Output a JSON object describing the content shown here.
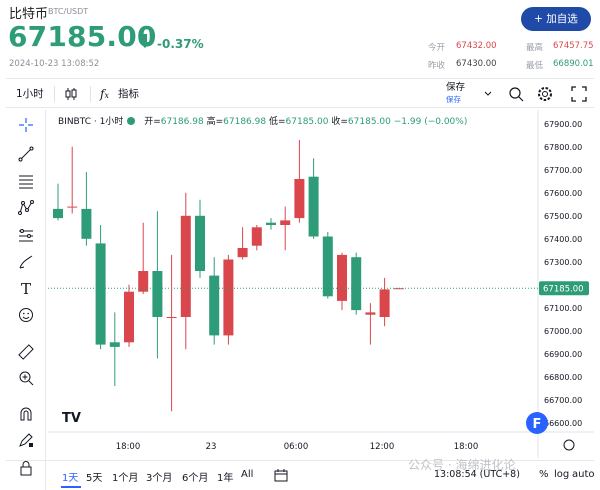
{
  "header": {
    "pair_name": "比特币",
    "pair_code": "BTC/USDT",
    "price": "67185.00",
    "change_pct": "-0.37%",
    "timestamp": "2024-10-23 13:08:52",
    "watch_button": "+ 加自选",
    "stats": {
      "open_label": "今开",
      "open_value": "67432.00",
      "high_label": "最高",
      "high_value": "67457.75",
      "prev_label": "昨收",
      "prev_value": "67430.00",
      "low_label": "最低",
      "low_value": "66890.01"
    },
    "colors": {
      "up": "#d9474c",
      "down": "#2e9c78",
      "accent": "#2962ff"
    }
  },
  "toolbar": {
    "interval": "1小时",
    "indicators": "指标",
    "save_label": "保存",
    "save_sub": "保存",
    "icons": [
      "candles-icon",
      "fx-icon",
      "undo-icon",
      "redo-icon",
      "search-icon",
      "settings-icon",
      "fullscreen-icon"
    ]
  },
  "tools": [
    "crosshair-icon",
    "trendline-icon",
    "fib-icon",
    "pattern-icon",
    "path-icon",
    "brush-icon",
    "text-icon",
    "emoji-icon",
    "ruler-icon",
    "zoom-in-icon",
    "magnet-icon",
    "lock-edit-icon",
    "lock-icon"
  ],
  "legend": {
    "symbol": "BINBTC · 1小时",
    "open_label": "开",
    "open": "67186.98",
    "high_label": "高",
    "high": "67186.98",
    "low_label": "低",
    "low": "67185.00",
    "close_label": "收",
    "close": "67185.00",
    "change": "−1.99 (−0.00%)"
  },
  "chart_data": {
    "type": "candlestick",
    "x_ticks": [
      "18:00",
      "23",
      "06:00",
      "12:00",
      "18:00"
    ],
    "y_ticks": [
      67900,
      67800,
      67700,
      67600,
      67500,
      67400,
      67300,
      67200,
      67100,
      67000,
      66900,
      66800,
      66700,
      66600
    ],
    "ylim": [
      66560,
      67960
    ],
    "last_price": "67185.00",
    "candles": [
      {
        "o": 67530,
        "h": 67640,
        "l": 67480,
        "c": 67490
      },
      {
        "o": 67540,
        "h": 67800,
        "l": 67510,
        "c": 67540
      },
      {
        "o": 67530,
        "h": 67690,
        "l": 67370,
        "c": 67400
      },
      {
        "o": 67380,
        "h": 67460,
        "l": 66920,
        "c": 66940
      },
      {
        "o": 66950,
        "h": 67080,
        "l": 66760,
        "c": 66930
      },
      {
        "o": 66950,
        "h": 67200,
        "l": 66930,
        "c": 67170
      },
      {
        "o": 67170,
        "h": 67470,
        "l": 67160,
        "c": 67260
      },
      {
        "o": 67260,
        "h": 67520,
        "l": 66880,
        "c": 67060
      },
      {
        "o": 67060,
        "h": 67330,
        "l": 66650,
        "c": 67060
      },
      {
        "o": 67060,
        "h": 67600,
        "l": 66920,
        "c": 67500
      },
      {
        "o": 67500,
        "h": 67570,
        "l": 67230,
        "c": 67260
      },
      {
        "o": 67240,
        "h": 67320,
        "l": 66940,
        "c": 66980
      },
      {
        "o": 66980,
        "h": 67330,
        "l": 66940,
        "c": 67310
      },
      {
        "o": 67320,
        "h": 67450,
        "l": 67310,
        "c": 67360
      },
      {
        "o": 67370,
        "h": 67460,
        "l": 67350,
        "c": 67450
      },
      {
        "o": 67470,
        "h": 67490,
        "l": 67440,
        "c": 67460
      },
      {
        "o": 67460,
        "h": 67540,
        "l": 67350,
        "c": 67480
      },
      {
        "o": 67490,
        "h": 67830,
        "l": 67470,
        "c": 67660
      },
      {
        "o": 67670,
        "h": 67750,
        "l": 67400,
        "c": 67410
      },
      {
        "o": 67410,
        "h": 67430,
        "l": 67140,
        "c": 67150
      },
      {
        "o": 67130,
        "h": 67340,
        "l": 67090,
        "c": 67330
      },
      {
        "o": 67320,
        "h": 67340,
        "l": 67070,
        "c": 67090
      },
      {
        "o": 67070,
        "h": 67120,
        "l": 66940,
        "c": 67080
      },
      {
        "o": 67060,
        "h": 67230,
        "l": 67020,
        "c": 67180
      },
      {
        "o": 67185,
        "h": 67187,
        "l": 67185,
        "c": 67185
      }
    ]
  },
  "rangebar": {
    "ranges": [
      "1天",
      "5天",
      "1个月",
      "3个月",
      "6个月",
      "1年",
      "All"
    ],
    "active": "1天",
    "clock": "13:08:54 (UTC+8)",
    "pct": "%",
    "log": "log",
    "auto": "auto"
  },
  "watermark": "公众号 · 海绵进化论"
}
